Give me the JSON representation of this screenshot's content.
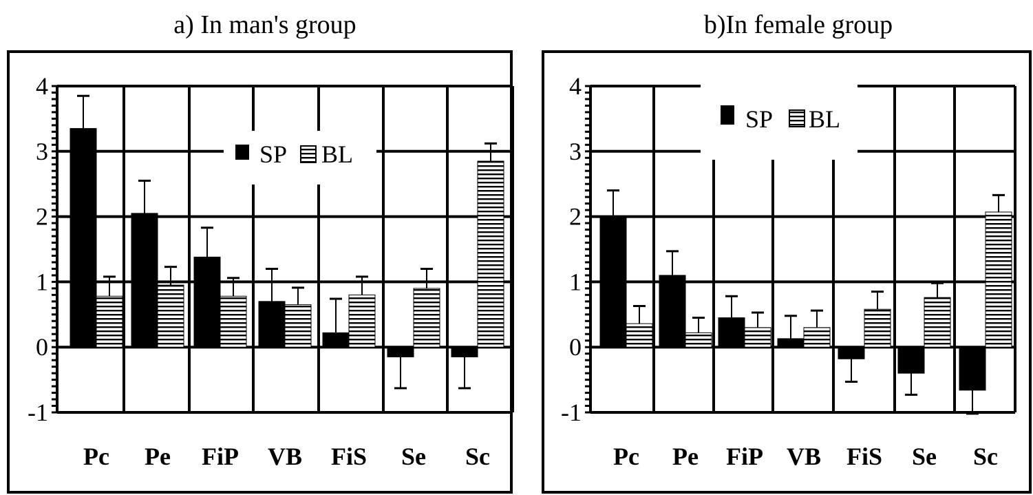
{
  "chart_data": [
    {
      "type": "bar",
      "title": "a) In man's group",
      "categories": [
        "Pc",
        "Pe",
        "FiP",
        "VB",
        "FiS",
        "Se",
        "Sc"
      ],
      "series": [
        {
          "name": "SP",
          "color": "#000000",
          "values": [
            3.35,
            2.05,
            1.38,
            0.7,
            0.22,
            -0.15,
            -0.15
          ],
          "errors": [
            0.5,
            0.5,
            0.45,
            0.5,
            0.52,
            0.48,
            0.48
          ]
        },
        {
          "name": "BL",
          "pattern": "horizontal-stripes",
          "values": [
            0.78,
            0.95,
            0.78,
            0.65,
            0.8,
            0.9,
            2.85
          ],
          "errors": [
            0.3,
            0.28,
            0.28,
            0.26,
            0.28,
            0.3,
            0.27
          ]
        }
      ],
      "ylim": [
        -1,
        4
      ],
      "yticks": [
        "4",
        "3",
        "2",
        "1",
        "0",
        "-1"
      ],
      "grid": true,
      "legend_position": "top-right"
    },
    {
      "type": "bar",
      "title": "b)In female group",
      "categories": [
        "Pc",
        "Pe",
        "FiP",
        "VB",
        "FiS",
        "Se",
        "Sc"
      ],
      "series": [
        {
          "name": "SP",
          "color": "#000000",
          "values": [
            1.98,
            1.1,
            0.45,
            0.13,
            -0.18,
            -0.4,
            -0.66
          ],
          "errors": [
            0.42,
            0.37,
            0.33,
            0.35,
            0.35,
            0.33,
            0.36
          ]
        },
        {
          "name": "BL",
          "pattern": "horizontal-stripes",
          "values": [
            0.36,
            0.22,
            0.3,
            0.3,
            0.58,
            0.76,
            2.07
          ],
          "errors": [
            0.27,
            0.23,
            0.23,
            0.26,
            0.27,
            0.22,
            0.26
          ]
        }
      ],
      "ylim": [
        -1,
        4
      ],
      "yticks": [
        "4",
        "3",
        "2",
        "1",
        "0",
        "-1"
      ],
      "grid": true,
      "legend_position": "top-center"
    }
  ]
}
